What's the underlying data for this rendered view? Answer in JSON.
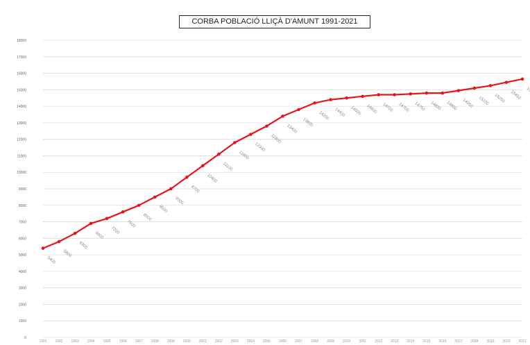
{
  "chart_data": {
    "type": "line",
    "title": "CORBA POBLACIÓ LLIÇÀ D'AMUNT 1991-2021",
    "xlabel": "",
    "ylabel": "",
    "x": [
      1991,
      1992,
      1993,
      1994,
      1995,
      1996,
      1997,
      1998,
      1999,
      2000,
      2001,
      2002,
      2003,
      2004,
      2005,
      2006,
      2007,
      2008,
      2009,
      2010,
      2011,
      2012,
      2013,
      2014,
      2015,
      2016,
      2017,
      2018,
      2019,
      2020,
      2021
    ],
    "series": [
      {
        "values": [
          5400,
          5800,
          6300,
          6900,
          7200,
          7600,
          8000,
          8500,
          9000,
          9700,
          10400,
          11100,
          11800,
          12300,
          12800,
          13400,
          13800,
          14200,
          14400,
          14500,
          14600,
          14700,
          14700,
          14750,
          14800,
          14800,
          14950,
          15100,
          15250,
          15450,
          15650
        ],
        "color": "#e8141a"
      }
    ],
    "ylim": [
      0,
      18000
    ],
    "yticks": [
      0,
      1000,
      2000,
      3000,
      4000,
      5000,
      6000,
      7000,
      8000,
      9000,
      10000,
      11000,
      12000,
      13000,
      14000,
      15000,
      16000,
      17000,
      18000
    ],
    "grid": true,
    "legend": "none"
  }
}
